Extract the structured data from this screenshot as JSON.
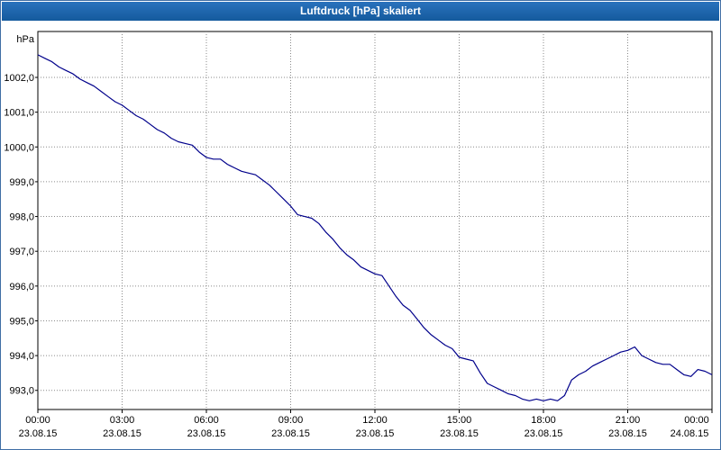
{
  "window": {
    "title": "Luftdruck [hPa] skaliert"
  },
  "chart_data": {
    "type": "line",
    "title": "Luftdruck [hPa] skaliert",
    "ylabel": "hPa",
    "xlabel": "",
    "legend": "none",
    "grid": "dotted",
    "line_color": "#00008b",
    "grid_color": "#8a8a8a",
    "plot_border_color": "#000000",
    "titlebar_color": "#1b60a8",
    "ylim": [
      992.45,
      1003.32
    ],
    "xlim": [
      0,
      24
    ],
    "y_ticks": [
      1002,
      1001,
      1000,
      999,
      998,
      997,
      996,
      995,
      994,
      993
    ],
    "y_tick_labels": [
      "1002,0",
      "1001,0",
      "1000,0",
      "999,0",
      "998,0",
      "997,0",
      "996,0",
      "995,0",
      "994,0",
      "993,0"
    ],
    "x_ticks": [
      0,
      3,
      6,
      9,
      12,
      15,
      18,
      21,
      24
    ],
    "x_tick_times": [
      "00:00",
      "03:00",
      "06:00",
      "09:00",
      "12:00",
      "15:00",
      "18:00",
      "21:00",
      "00:00"
    ],
    "x_tick_dates": [
      "23.08.15",
      "23.08.15",
      "23.08.15",
      "23.08.15",
      "23.08.15",
      "23.08.15",
      "23.08.15",
      "23.08.15",
      "24.08.15"
    ],
    "x_start_hours": 0,
    "x_step_hours": 0.25,
    "x_end_hours": 24,
    "series": [
      {
        "name": "Luftdruck",
        "unit": "hPa",
        "y": [
          1002.65,
          1002.55,
          1002.45,
          1002.3,
          1002.2,
          1002.1,
          1001.95,
          1001.85,
          1001.75,
          1001.6,
          1001.45,
          1001.3,
          1001.2,
          1001.05,
          1000.9,
          1000.8,
          1000.65,
          1000.5,
          1000.4,
          1000.25,
          1000.15,
          1000.1,
          1000.05,
          999.85,
          999.7,
          999.65,
          999.65,
          999.5,
          999.4,
          999.3,
          999.25,
          999.2,
          999.05,
          998.9,
          998.7,
          998.5,
          998.3,
          998.05,
          998.0,
          997.95,
          997.8,
          997.55,
          997.35,
          997.1,
          996.9,
          996.75,
          996.55,
          996.45,
          996.35,
          996.3,
          996.0,
          995.7,
          995.45,
          995.3,
          995.05,
          994.8,
          994.6,
          994.45,
          994.3,
          994.2,
          993.95,
          993.9,
          993.85,
          993.5,
          993.2,
          993.1,
          993.0,
          992.9,
          992.85,
          992.75,
          992.7,
          992.75,
          992.7,
          992.75,
          992.7,
          992.85,
          993.3,
          993.45,
          993.55,
          993.7,
          993.8,
          993.9,
          994.0,
          994.1,
          994.15,
          994.25,
          994.0,
          993.9,
          993.8,
          993.75,
          993.75,
          993.6,
          993.45,
          993.4,
          993.6,
          993.55,
          993.45
        ]
      }
    ]
  }
}
